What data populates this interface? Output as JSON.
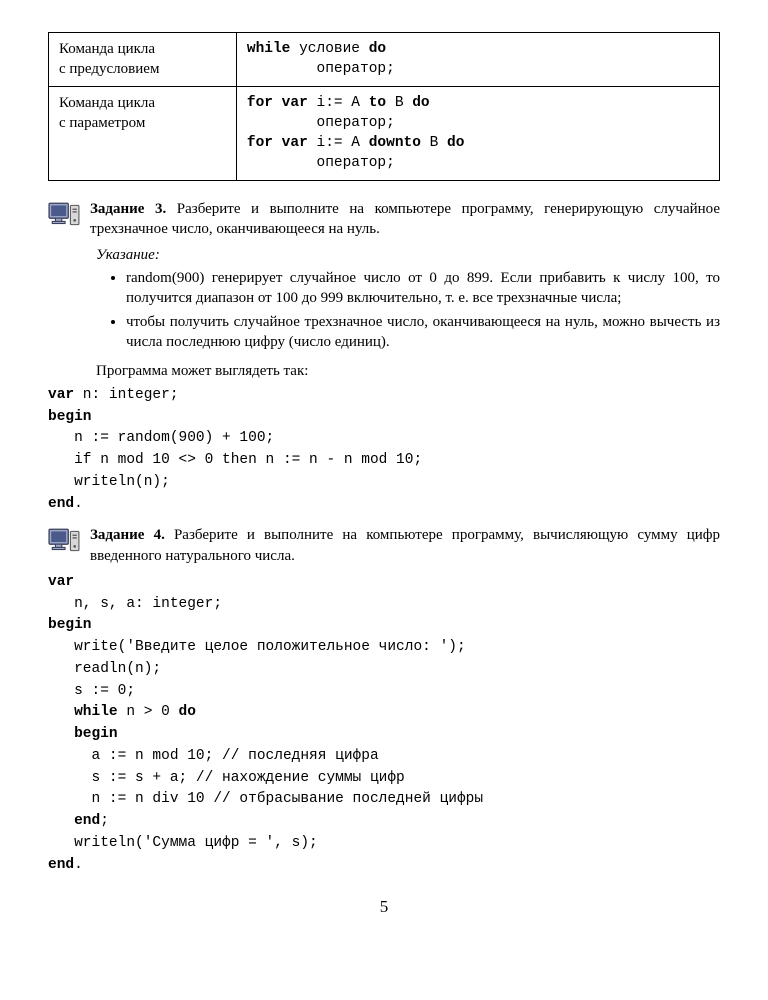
{
  "table": {
    "rows": [
      {
        "left": "Команда цикла\nс предусловием",
        "right_html": "<span class=\"bold\">while</span> условие <span class=\"bold\">do</span>\n        оператор;"
      },
      {
        "left": "Команда цикла\nс параметром",
        "right_html": "<span class=\"bold\">for var</span> i:= A <span class=\"bold\">to</span> B <span class=\"bold\">do</span>\n        оператор;\n<span class=\"bold\">for var</span> i:= A <span class=\"bold\">downto</span> B <span class=\"bold\">do</span>\n        оператор;"
      }
    ]
  },
  "task3": {
    "label": "Задание 3.",
    "text": "Разберите и выполните на компьютере программу, генерирующую случайное трехзначное число, оканчивающееся на нуль."
  },
  "hint_label": "Указание",
  "hints": [
    "random(900) генерирует случайное число от 0 до 899. Если прибавить к числу 100, то получится диапазон от 100 до 999 включительно, т. е. все трехзначные числа;",
    "чтобы получить случайное трехзначное число, оканчивающееся на нуль, можно вычесть из числа последнюю цифру (число единиц)."
  ],
  "prog_intro": "Программа может выглядеть так:",
  "code1_html": "<span class=\"bold\">var</span> n: integer;\n<span class=\"bold\">begin</span>\n   n := random(900) + 100;\n   if n mod 10 <> 0 then n := n - n mod 10;\n   writeln(n);\n<span class=\"bold\">end</span>.",
  "task4": {
    "label": "Задание 4.",
    "text": "Разберите и выполните на компьютере программу, вычисляющую сумму цифр введенного натурального числа."
  },
  "code2_html": "<span class=\"bold\">var</span>\n   n, s, a: integer;\n<span class=\"bold\">begin</span>\n   write('Введите целое положительное число: ');\n   readln(n);\n   s := 0;\n   <span class=\"bold\">while</span> n > 0 <span class=\"bold\">do</span>\n   <span class=\"bold\">begin</span>\n     a := n mod 10; // последняя цифра\n     s := s + a; // нахождение суммы цифр\n     n := n div 10 // отбрасывание последней цифры\n   <span class=\"bold\">end</span>;\n   writeln('Сумма цифр = ', s);\n<span class=\"bold\">end</span>.",
  "page_number": "5",
  "icon_colors": {
    "monitor_fill": "#9ea8c9",
    "monitor_border": "#3a3f58",
    "screen": "#4a5a8a",
    "tower_fill": "#d8d8d8",
    "tower_border": "#555",
    "drive": "#555"
  }
}
